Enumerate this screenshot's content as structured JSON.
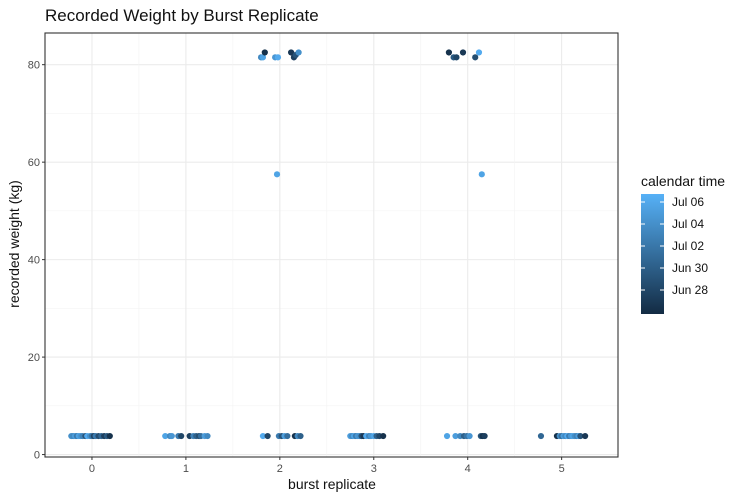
{
  "chart_data": {
    "type": "scatter",
    "title": "Recorded Weight by Burst Replicate",
    "xlabel": "burst replicate",
    "ylabel": "recorded weight (kg)",
    "xlim": [
      -0.5,
      5.6
    ],
    "ylim": [
      -0.5,
      86.5
    ],
    "x_ticks": [
      "0",
      "1",
      "2",
      "3",
      "4",
      "5"
    ],
    "y_ticks": [
      "0",
      "20",
      "40",
      "60",
      "80"
    ],
    "grid": true,
    "legend": {
      "title": "calendar time",
      "position": "right",
      "type": "colorbar",
      "labels": [
        "Jul 06",
        "Jul 04",
        "Jul 02",
        "Jun 30",
        "Jun 28"
      ],
      "color_low": "#132b43",
      "color_high": "#56b1f7"
    },
    "color_scale_domain": [
      0,
      1
    ],
    "points": [
      {
        "x": -0.22,
        "y": 3.8,
        "t": 0.75
      },
      {
        "x": -0.2,
        "y": 3.8,
        "t": 0.7
      },
      {
        "x": -0.18,
        "y": 3.8,
        "t": 0.85
      },
      {
        "x": -0.16,
        "y": 3.8,
        "t": 0.6
      },
      {
        "x": -0.14,
        "y": 3.8,
        "t": 0.9
      },
      {
        "x": -0.12,
        "y": 3.8,
        "t": 0.8
      },
      {
        "x": -0.1,
        "y": 3.8,
        "t": 0.65
      },
      {
        "x": -0.07,
        "y": 3.8,
        "t": 0.3
      },
      {
        "x": -0.05,
        "y": 3.8,
        "t": 0.95
      },
      {
        "x": -0.02,
        "y": 3.8,
        "t": 0.75
      },
      {
        "x": 0.0,
        "y": 3.8,
        "t": 0.55
      },
      {
        "x": 0.02,
        "y": 3.8,
        "t": 0.2
      },
      {
        "x": 0.04,
        "y": 3.8,
        "t": 0.6
      },
      {
        "x": 0.07,
        "y": 3.8,
        "t": 0.25
      },
      {
        "x": 0.1,
        "y": 3.8,
        "t": 0.45
      },
      {
        "x": 0.13,
        "y": 3.8,
        "t": 0.15
      },
      {
        "x": 0.16,
        "y": 3.8,
        "t": 0.35
      },
      {
        "x": 0.19,
        "y": 3.8,
        "t": 0.05
      },
      {
        "x": 0.78,
        "y": 3.8,
        "t": 0.9
      },
      {
        "x": 0.83,
        "y": 3.8,
        "t": 0.7
      },
      {
        "x": 0.85,
        "y": 3.8,
        "t": 0.8
      },
      {
        "x": 0.92,
        "y": 3.8,
        "t": 0.6
      },
      {
        "x": 0.95,
        "y": 3.8,
        "t": 0.2
      },
      {
        "x": 1.04,
        "y": 3.8,
        "t": 0.15
      },
      {
        "x": 1.08,
        "y": 3.8,
        "t": 0.65
      },
      {
        "x": 1.11,
        "y": 3.8,
        "t": 0.4
      },
      {
        "x": 1.14,
        "y": 3.8,
        "t": 0.25
      },
      {
        "x": 1.16,
        "y": 3.8,
        "t": 0.5
      },
      {
        "x": 1.2,
        "y": 3.8,
        "t": 0.85
      },
      {
        "x": 1.23,
        "y": 3.8,
        "t": 0.7
      },
      {
        "x": 1.8,
        "y": 81.5,
        "t": 0.7
      },
      {
        "x": 1.82,
        "y": 81.5,
        "t": 0.9
      },
      {
        "x": 1.84,
        "y": 82.5,
        "t": 0.05
      },
      {
        "x": 1.95,
        "y": 81.5,
        "t": 0.8
      },
      {
        "x": 1.98,
        "y": 81.5,
        "t": 0.95
      },
      {
        "x": 2.12,
        "y": 82.5,
        "t": 0.1
      },
      {
        "x": 2.15,
        "y": 81.5,
        "t": 0.15
      },
      {
        "x": 2.17,
        "y": 82.0,
        "t": 0.3
      },
      {
        "x": 2.2,
        "y": 82.5,
        "t": 0.75
      },
      {
        "x": 1.97,
        "y": 57.5,
        "t": 0.9
      },
      {
        "x": 1.82,
        "y": 3.8,
        "t": 0.95
      },
      {
        "x": 1.87,
        "y": 3.8,
        "t": 0.2
      },
      {
        "x": 1.99,
        "y": 3.8,
        "t": 0.6
      },
      {
        "x": 2.02,
        "y": 3.8,
        "t": 0.3
      },
      {
        "x": 2.05,
        "y": 3.8,
        "t": 0.85
      },
      {
        "x": 2.08,
        "y": 3.8,
        "t": 0.5
      },
      {
        "x": 2.16,
        "y": 3.8,
        "t": 0.05
      },
      {
        "x": 2.19,
        "y": 3.8,
        "t": 0.7
      },
      {
        "x": 2.22,
        "y": 3.8,
        "t": 0.4
      },
      {
        "x": 2.75,
        "y": 3.8,
        "t": 0.85
      },
      {
        "x": 2.77,
        "y": 3.8,
        "t": 0.7
      },
      {
        "x": 2.79,
        "y": 3.8,
        "t": 0.9
      },
      {
        "x": 2.81,
        "y": 3.8,
        "t": 0.6
      },
      {
        "x": 2.83,
        "y": 3.8,
        "t": 0.8
      },
      {
        "x": 2.85,
        "y": 3.8,
        "t": 0.75
      },
      {
        "x": 2.87,
        "y": 3.8,
        "t": 0.3
      },
      {
        "x": 2.89,
        "y": 3.8,
        "t": 0.1
      },
      {
        "x": 2.92,
        "y": 3.8,
        "t": 0.95
      },
      {
        "x": 2.95,
        "y": 3.8,
        "t": 0.65
      },
      {
        "x": 2.97,
        "y": 3.8,
        "t": 0.8
      },
      {
        "x": 3.0,
        "y": 3.8,
        "t": 0.9
      },
      {
        "x": 3.03,
        "y": 3.8,
        "t": 0.4
      },
      {
        "x": 3.06,
        "y": 3.8,
        "t": 0.2
      },
      {
        "x": 3.1,
        "y": 3.8,
        "t": 0.05
      },
      {
        "x": 3.8,
        "y": 82.5,
        "t": 0.05
      },
      {
        "x": 3.85,
        "y": 81.5,
        "t": 0.35
      },
      {
        "x": 3.88,
        "y": 81.5,
        "t": 0.2
      },
      {
        "x": 3.95,
        "y": 82.5,
        "t": 0.1
      },
      {
        "x": 4.08,
        "y": 81.5,
        "t": 0.25
      },
      {
        "x": 4.12,
        "y": 82.5,
        "t": 0.95
      },
      {
        "x": 4.15,
        "y": 57.5,
        "t": 0.9
      },
      {
        "x": 3.78,
        "y": 3.8,
        "t": 0.9
      },
      {
        "x": 3.87,
        "y": 3.8,
        "t": 0.85
      },
      {
        "x": 3.92,
        "y": 3.8,
        "t": 0.7
      },
      {
        "x": 3.96,
        "y": 3.8,
        "t": 0.4
      },
      {
        "x": 3.99,
        "y": 3.8,
        "t": 0.55
      },
      {
        "x": 4.02,
        "y": 3.8,
        "t": 0.8
      },
      {
        "x": 4.14,
        "y": 3.8,
        "t": 0.3
      },
      {
        "x": 4.16,
        "y": 3.8,
        "t": 0.05
      },
      {
        "x": 4.18,
        "y": 3.8,
        "t": 0.15
      },
      {
        "x": 4.78,
        "y": 3.8,
        "t": 0.45
      },
      {
        "x": 4.95,
        "y": 3.8,
        "t": 0.05
      },
      {
        "x": 4.98,
        "y": 3.8,
        "t": 0.75
      },
      {
        "x": 5.0,
        "y": 3.8,
        "t": 0.5
      },
      {
        "x": 5.02,
        "y": 3.8,
        "t": 0.85
      },
      {
        "x": 5.04,
        "y": 3.8,
        "t": 0.7
      },
      {
        "x": 5.06,
        "y": 3.8,
        "t": 0.95
      },
      {
        "x": 5.08,
        "y": 3.8,
        "t": 0.6
      },
      {
        "x": 5.1,
        "y": 3.8,
        "t": 0.8
      },
      {
        "x": 5.12,
        "y": 3.8,
        "t": 0.9
      },
      {
        "x": 5.14,
        "y": 3.8,
        "t": 0.75
      },
      {
        "x": 5.16,
        "y": 3.8,
        "t": 0.65
      },
      {
        "x": 5.18,
        "y": 3.8,
        "t": 0.85
      },
      {
        "x": 5.2,
        "y": 3.8,
        "t": 0.3
      },
      {
        "x": 5.25,
        "y": 3.8,
        "t": 0.1
      }
    ]
  }
}
